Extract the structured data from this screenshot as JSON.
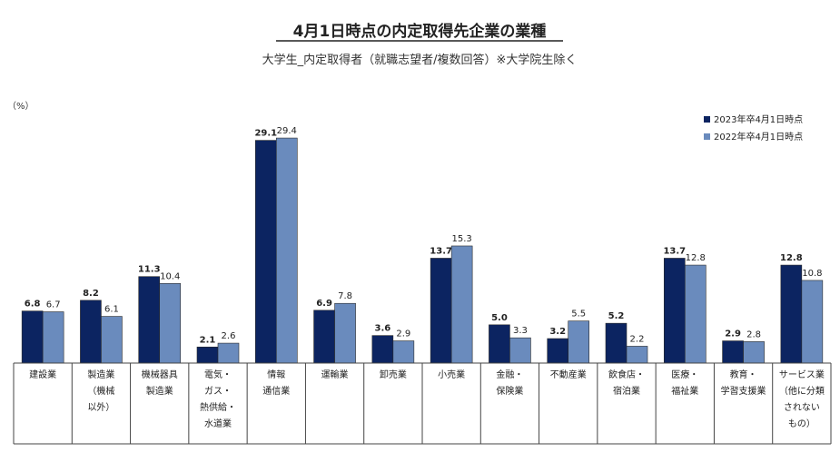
{
  "chart_data": {
    "type": "bar",
    "title": "4月1日時点の内定取得先企業の業種",
    "subtitle": "大学生_内定取得者（就職志望者/複数回答）※大学院生除く",
    "unit_label": "（%）",
    "ylim": [
      0,
      30
    ],
    "grid": false,
    "legend_position": "top-right",
    "categories": [
      [
        "建設業"
      ],
      [
        "製造業",
        "（機械",
        "以外）"
      ],
      [
        "機械器具",
        "製造業"
      ],
      [
        "電気・",
        "ガス・",
        "熱供給・",
        "水道業"
      ],
      [
        "情報",
        "通信業"
      ],
      [
        "運輸業"
      ],
      [
        "卸売業"
      ],
      [
        "小売業"
      ],
      [
        "金融・",
        "保険業"
      ],
      [
        "不動産業"
      ],
      [
        "飲食店・",
        "宿泊業"
      ],
      [
        "医療・",
        "福祉業"
      ],
      [
        "教育・",
        "学習支援業"
      ],
      [
        "サービス業",
        "（他に分類",
        "されない",
        "もの）"
      ]
    ],
    "series": [
      {
        "name": "2023年卒4月1日時点",
        "color": "#0c2461",
        "values": [
          6.8,
          8.2,
          11.3,
          2.1,
          29.1,
          6.9,
          3.6,
          13.7,
          5.0,
          3.2,
          5.2,
          13.7,
          2.9,
          12.8
        ]
      },
      {
        "name": "2022年卒4月1日時点",
        "color": "#6a8bbd",
        "values": [
          6.7,
          6.1,
          10.4,
          2.6,
          29.4,
          7.8,
          2.9,
          15.3,
          3.3,
          5.5,
          2.2,
          12.8,
          2.8,
          10.8
        ]
      }
    ]
  }
}
